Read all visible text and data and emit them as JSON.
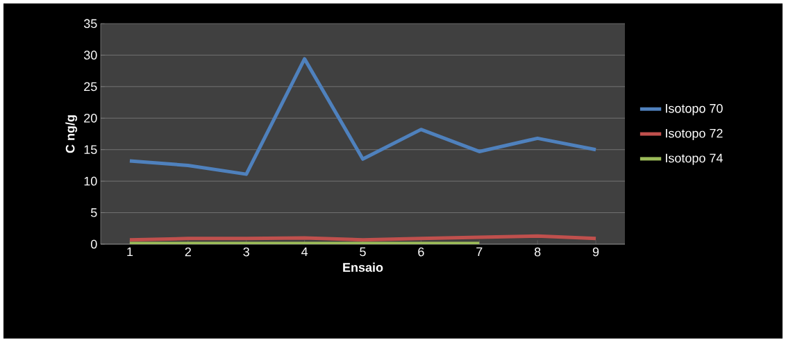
{
  "chart_data": {
    "type": "line",
    "xlabel": "Ensaio",
    "ylabel": "C ng/g",
    "categories": [
      "1",
      "2",
      "3",
      "4",
      "5",
      "6",
      "7",
      "8",
      "9"
    ],
    "series": [
      {
        "name": "Isotopo 70",
        "color": "#4f81bd",
        "values": [
          13.2,
          12.5,
          11.1,
          29.4,
          13.5,
          18.2,
          14.7,
          16.8,
          15.0
        ]
      },
      {
        "name": "Isotopo 72",
        "color": "#c0504d",
        "values": [
          0.7,
          0.9,
          0.9,
          1.0,
          0.7,
          0.9,
          1.1,
          1.3,
          0.9
        ]
      },
      {
        "name": "Isotopo 74",
        "color": "#9bbb59",
        "values": [
          0.1,
          0.1,
          0.1,
          0.1,
          0.1,
          0.1,
          0.1,
          null,
          null
        ]
      }
    ],
    "ylim": [
      0,
      35
    ],
    "yticks": [
      0,
      5,
      10,
      15,
      20,
      25,
      30,
      35
    ],
    "grid": "y",
    "legend": "right",
    "marker": "none"
  }
}
